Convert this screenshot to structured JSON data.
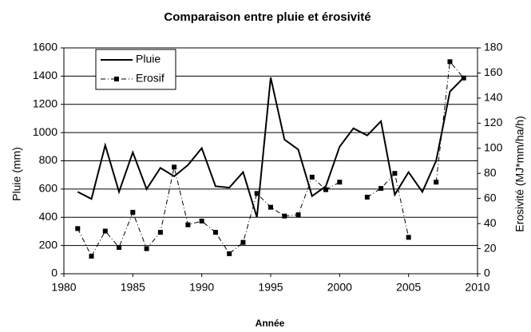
{
  "chart_data": {
    "type": "line",
    "title": "Comparaison entre pluie et érosivité",
    "x_label": "Année",
    "y_label": "Pluie (mm)",
    "y2_label": "Erosivité (MJ*mm/ha/h)",
    "x": [
      1981,
      1982,
      1983,
      1984,
      1985,
      1986,
      1987,
      1988,
      1989,
      1990,
      1991,
      1992,
      1993,
      1994,
      1995,
      1996,
      1997,
      1998,
      1999,
      2000,
      2001,
      2002,
      2003,
      2004,
      2005,
      2006,
      2007,
      2008,
      2009
    ],
    "series": [
      {
        "name": "Pluie",
        "color": "#000000",
        "style": "solid",
        "marker": "none",
        "values": [
          580,
          530,
          910,
          580,
          860,
          600,
          750,
          690,
          770,
          890,
          620,
          610,
          720,
          400,
          1390,
          950,
          880,
          550,
          620,
          900,
          1030,
          980,
          1080,
          560,
          720,
          580,
          800,
          1290,
          1390
        ]
      },
      {
        "name": "Erosif",
        "color": "#000000",
        "style": "dashdot",
        "marker": "square",
        "axis": "y2",
        "values": [
          36,
          14,
          34,
          21,
          49,
          20,
          33,
          85,
          39,
          42,
          33,
          16,
          25,
          64,
          53,
          46,
          47,
          77,
          67,
          73,
          null,
          61,
          68,
          80,
          29,
          null,
          73,
          169,
          156
        ]
      }
    ],
    "xlim": [
      1980,
      2010
    ],
    "xticks": [
      1980,
      1985,
      1990,
      1995,
      2000,
      2005,
      2010
    ],
    "ylim": [
      0,
      1600
    ],
    "yticks": [
      0,
      200,
      400,
      600,
      800,
      1000,
      1200,
      1400,
      1600
    ],
    "y2lim": [
      0,
      180
    ],
    "y2ticks": [
      0,
      20,
      40,
      60,
      80,
      100,
      120,
      140,
      160,
      180
    ],
    "grid": true,
    "legend": "upper left"
  }
}
